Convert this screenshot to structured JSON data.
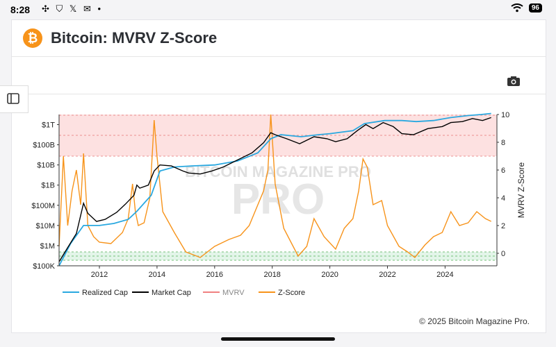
{
  "status_bar": {
    "time": "8:28",
    "battery": "96"
  },
  "header": {
    "title": "Bitcoin: MVRV Z-Score",
    "logo": "bitcoin-icon"
  },
  "footer": {
    "copyright": "© 2025 Bitcoin Magazine Pro."
  },
  "watermark": "BITCOIN MAGAZINE PRO",
  "colors": {
    "realized": "#29a8e0",
    "market": "#000000",
    "mvrv": "#f08080",
    "zscore": "#f7931a",
    "band_red": "#fde1e1",
    "band_green": "#e3f5e9"
  },
  "chart_data": {
    "type": "line",
    "title": "Bitcoin: MVRV Z-Score",
    "x_ticks": [
      "2012",
      "2014",
      "2016",
      "2018",
      "2020",
      "2022",
      "2024"
    ],
    "x_range": [
      2010.6,
      2025.8
    ],
    "y_left": {
      "label": "",
      "scale": "log",
      "ticks": [
        "$100K",
        "$1M",
        "$10M",
        "$100M",
        "$1B",
        "$10B",
        "$100B",
        "$1T"
      ],
      "range_exp": [
        5,
        12.5
      ]
    },
    "y_right": {
      "label": "MVRV Z-Score",
      "ticks": [
        "0",
        "2",
        "4",
        "6",
        "8",
        "10"
      ],
      "range": [
        -0.9,
        10
      ]
    },
    "bands": {
      "top_zscore": [
        7,
        10
      ],
      "bottom_zscore": [
        -0.5,
        0.1
      ]
    },
    "legend": [
      "Realized Cap",
      "Market Cap",
      "MVRV",
      "Z-Score"
    ],
    "series": [
      {
        "name": "Realized Cap",
        "x": [
          2010.6,
          2011.0,
          2011.45,
          2012.0,
          2012.5,
          2013.0,
          2013.3,
          2013.8,
          2014.1,
          2014.6,
          2015.2,
          2016.0,
          2016.8,
          2017.5,
          2017.95,
          2018.3,
          2019.0,
          2019.6,
          2020.0,
          2020.8,
          2021.2,
          2021.9,
          2022.5,
          2023.0,
          2023.6,
          2024.2,
          2024.8,
          2025.25,
          2025.6
        ],
        "log10": [
          5.0,
          6.1,
          7.0,
          7.0,
          7.1,
          7.3,
          7.7,
          8.5,
          9.7,
          9.9,
          9.95,
          10.0,
          10.2,
          10.6,
          11.3,
          11.5,
          11.4,
          11.5,
          11.55,
          11.7,
          12.05,
          12.2,
          12.2,
          12.15,
          12.2,
          12.35,
          12.45,
          12.5,
          12.55
        ]
      },
      {
        "name": "Market Cap",
        "x": [
          2010.6,
          2010.9,
          2011.2,
          2011.45,
          2011.6,
          2011.9,
          2012.2,
          2012.6,
          2012.9,
          2013.2,
          2013.3,
          2013.4,
          2013.7,
          2013.9,
          2014.1,
          2014.5,
          2014.9,
          2015.1,
          2015.5,
          2015.9,
          2016.3,
          2016.8,
          2017.3,
          2017.7,
          2017.95,
          2018.1,
          2018.5,
          2018.95,
          2019.45,
          2019.9,
          2020.2,
          2020.6,
          2020.95,
          2021.25,
          2021.5,
          2021.85,
          2022.2,
          2022.5,
          2022.9,
          2023.4,
          2023.9,
          2024.2,
          2024.6,
          2024.95,
          2025.3,
          2025.6
        ],
        "log10": [
          5.2,
          5.9,
          6.6,
          8.1,
          7.6,
          7.2,
          7.3,
          7.65,
          8.05,
          8.5,
          9.0,
          8.85,
          9.0,
          9.7,
          10.0,
          9.95,
          9.7,
          9.6,
          9.55,
          9.7,
          9.9,
          10.25,
          10.6,
          11.1,
          11.6,
          11.5,
          11.3,
          11.05,
          11.4,
          11.3,
          11.15,
          11.3,
          11.7,
          12.0,
          11.8,
          12.1,
          11.9,
          11.55,
          11.5,
          11.8,
          11.9,
          12.1,
          12.15,
          12.3,
          12.2,
          12.35
        ]
      },
      {
        "name": "Z-Score",
        "x": [
          2010.6,
          2010.75,
          2010.9,
          2011.05,
          2011.2,
          2011.35,
          2011.45,
          2011.6,
          2011.8,
          2012.0,
          2012.4,
          2012.8,
          2013.0,
          2013.15,
          2013.25,
          2013.35,
          2013.55,
          2013.75,
          2013.9,
          2014.0,
          2014.2,
          2014.6,
          2015.0,
          2015.5,
          2016.0,
          2016.5,
          2016.9,
          2017.2,
          2017.5,
          2017.7,
          2017.85,
          2017.95,
          2018.1,
          2018.4,
          2018.9,
          2019.2,
          2019.45,
          2019.8,
          2020.2,
          2020.5,
          2020.8,
          2021.0,
          2021.15,
          2021.3,
          2021.5,
          2021.8,
          2022.0,
          2022.4,
          2022.7,
          2022.95,
          2023.3,
          2023.6,
          2023.9,
          2024.2,
          2024.5,
          2024.8,
          2025.1,
          2025.4,
          2025.6
        ],
        "values": [
          0.5,
          7.0,
          2.0,
          4.5,
          6.0,
          3.5,
          7.2,
          2.0,
          1.2,
          0.8,
          0.7,
          1.5,
          2.5,
          5.0,
          3.0,
          2.0,
          2.2,
          4.0,
          9.6,
          7.0,
          3.0,
          1.5,
          0.1,
          -0.3,
          0.5,
          1.0,
          1.3,
          2.0,
          3.5,
          4.5,
          6.0,
          10.0,
          5.0,
          1.8,
          -0.2,
          0.5,
          2.5,
          1.2,
          0.3,
          1.8,
          2.5,
          4.5,
          6.8,
          6.2,
          3.5,
          3.8,
          2.0,
          0.5,
          0.1,
          -0.3,
          0.6,
          1.2,
          1.5,
          3.0,
          2.0,
          2.2,
          3.0,
          2.5,
          2.3
        ]
      }
    ]
  }
}
